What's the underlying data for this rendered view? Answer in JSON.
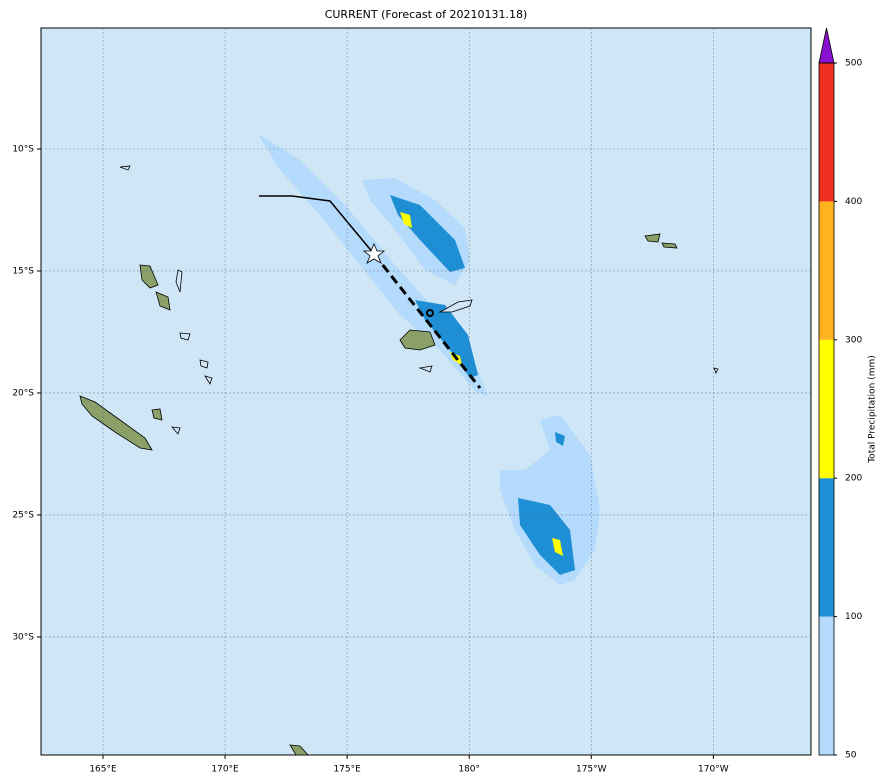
{
  "title": "CURRENT (Forecast of 20210131.18)",
  "map": {
    "lonlim": [
      162.46,
      194.0
    ],
    "latlim": [
      -34.84,
      -5.04
    ],
    "lon_ticks": [
      {
        "value": 165,
        "label": "165°E"
      },
      {
        "value": 170,
        "label": "170°E"
      },
      {
        "value": 175,
        "label": "175°E"
      },
      {
        "value": 180,
        "label": "180°"
      },
      {
        "value": 185,
        "label": "175°W"
      },
      {
        "value": 190,
        "label": "170°W"
      }
    ],
    "lat_ticks": [
      {
        "value": -10,
        "label": "10°S"
      },
      {
        "value": -15,
        "label": "15°S"
      },
      {
        "value": -20,
        "label": "20°S"
      },
      {
        "value": -25,
        "label": "25°S"
      },
      {
        "value": -30,
        "label": "30°S"
      }
    ]
  },
  "colorbar": {
    "label": "Total Precipitation (mm)",
    "ticks": [
      50,
      100,
      200,
      300,
      400,
      500
    ],
    "colors": [
      "#b4dafc",
      "#1e8fd4",
      "#ffff00",
      "#ffb31e",
      "#f03022"
    ],
    "extend_color": "#8a10d0"
  }
}
